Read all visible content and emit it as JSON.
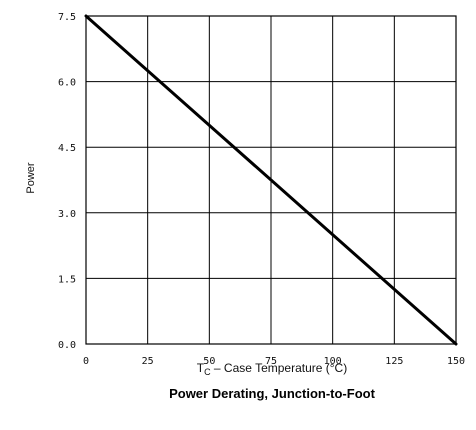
{
  "chart_data": {
    "type": "line",
    "title": "Power Derating, Junction-to-Foot",
    "xlabel": "T C – Case Temperature (°C)",
    "xlabel_main": "T",
    "xlabel_sub": "C",
    "xlabel_rest": " – Case Temperature (°C)",
    "ylabel": "Power",
    "xlim": [
      0,
      150
    ],
    "ylim": [
      0,
      7.5
    ],
    "x_ticks": [
      "0",
      "25",
      "50",
      "75",
      "100",
      "125",
      "150"
    ],
    "y_ticks": [
      "0.0",
      "1.5",
      "3.0",
      "4.5",
      "6.0",
      "7.5"
    ],
    "grid": true,
    "series": [
      {
        "x": [
          0,
          150
        ],
        "y": [
          7.5,
          0
        ]
      }
    ],
    "colors": {
      "line": "#000000",
      "grid": "#000000"
    }
  }
}
